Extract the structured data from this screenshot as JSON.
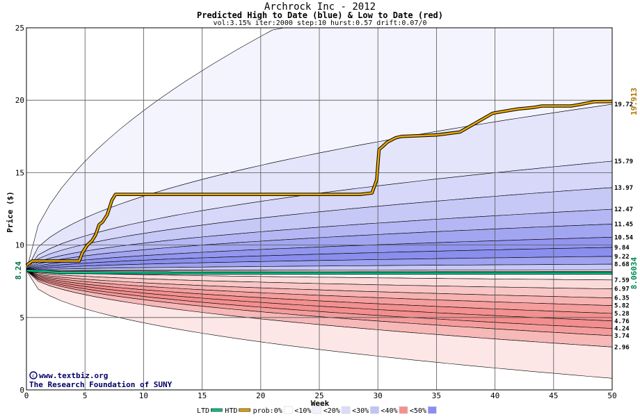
{
  "chart_data": {
    "type": "area",
    "title": "Archrock Inc - 2012",
    "subtitle": "Predicted High to Date (blue) &  Low to Date (red)",
    "params": "vol:3.15% iter:2000 step:10 hurst:0.57 drift:0.07/0",
    "xlabel": "Week",
    "ylabel": "Price ($)",
    "xlim": [
      0,
      50
    ],
    "ylim": [
      0,
      25
    ],
    "xticks": [
      0,
      5,
      10,
      15,
      20,
      25,
      30,
      35,
      40,
      45,
      50
    ],
    "yticks": [
      0,
      5,
      10,
      15,
      20,
      25
    ],
    "grid": true,
    "start_label": "8.24",
    "ltd_label": "8.06034",
    "htd_label": "19.913",
    "credit_line1": "www.textbiz.org",
    "credit_line2": "The Research Foundation of SUNY",
    "high_band_end_labels": [
      {
        "text": "19.72",
        "y": 19.72
      },
      {
        "text": "15.79",
        "y": 15.79
      },
      {
        "text": "13.97",
        "y": 13.97
      },
      {
        "text": "12.47",
        "y": 12.47
      },
      {
        "text": "11.45",
        "y": 11.45
      },
      {
        "text": "10.54",
        "y": 10.54
      },
      {
        "text": "9.84",
        "y": 9.84
      },
      {
        "text": "9.22",
        "y": 9.22
      },
      {
        "text": "8.68",
        "y": 8.68
      }
    ],
    "low_band_end_labels": [
      {
        "text": "7.59",
        "y": 7.59
      },
      {
        "text": "6.97",
        "y": 6.97
      },
      {
        "text": "6.35",
        "y": 6.35
      },
      {
        "text": "5.82",
        "y": 5.82
      },
      {
        "text": "5.28",
        "y": 5.28
      },
      {
        "text": "4.76",
        "y": 4.76
      },
      {
        "text": "4.24",
        "y": 4.24
      },
      {
        "text": "3.74",
        "y": 3.74
      },
      {
        "text": "2.96",
        "y": 2.96
      }
    ],
    "series": [
      {
        "name": "LTD",
        "color": "#00c88c",
        "x": [
          0,
          1,
          2,
          3,
          5,
          8,
          12,
          12.5,
          20,
          30,
          40,
          50
        ],
        "y": [
          8.24,
          8.2,
          8.15,
          8.1,
          8.1,
          8.08,
          8.08,
          8.06,
          8.06,
          8.06,
          8.06,
          8.06
        ]
      },
      {
        "name": "HTD",
        "color": "#e8a800",
        "x": [
          0,
          0.5,
          3,
          4.5,
          4.8,
          5.2,
          5.6,
          5.9,
          6.2,
          6.5,
          6.9,
          7.3,
          7.6,
          25,
          28.5,
          29.5,
          29.9,
          30.1,
          30.4,
          30.8,
          31.5,
          32,
          35,
          37,
          38.5,
          39.8,
          40.5,
          42,
          43.3,
          44,
          46.5,
          47.2,
          48.5,
          50
        ],
        "y": [
          8.6,
          8.9,
          8.9,
          8.9,
          9.5,
          10.0,
          10.3,
          10.7,
          11.4,
          11.6,
          12.1,
          13.1,
          13.5,
          13.5,
          13.5,
          13.6,
          14.5,
          16.6,
          16.8,
          17.1,
          17.4,
          17.5,
          17.6,
          17.8,
          18.5,
          19.1,
          19.2,
          19.4,
          19.5,
          19.6,
          19.6,
          19.7,
          19.9,
          19.91
        ]
      }
    ],
    "legend": [
      {
        "label": "LTD",
        "kind": "line",
        "color": "#00c88c"
      },
      {
        "label": "HTD",
        "kind": "line",
        "color": "#e8a800"
      },
      {
        "label": "prob:0%",
        "kind": "swatch",
        "color": "#ffffff"
      },
      {
        "label": "<10%",
        "kind": "swatch",
        "color": "#f2f2ff"
      },
      {
        "label": "<20%",
        "kind": "swatch",
        "color": "#dcdcf8"
      },
      {
        "label": "<30%",
        "kind": "swatch",
        "color": "#c0c4f4"
      },
      {
        "label": "<40%",
        "kind": "swatch",
        "color": "#f49090"
      },
      {
        "label": "<50%",
        "kind": "swatch",
        "color": "#8c8cf0"
      }
    ],
    "legend_position": "bottom"
  }
}
